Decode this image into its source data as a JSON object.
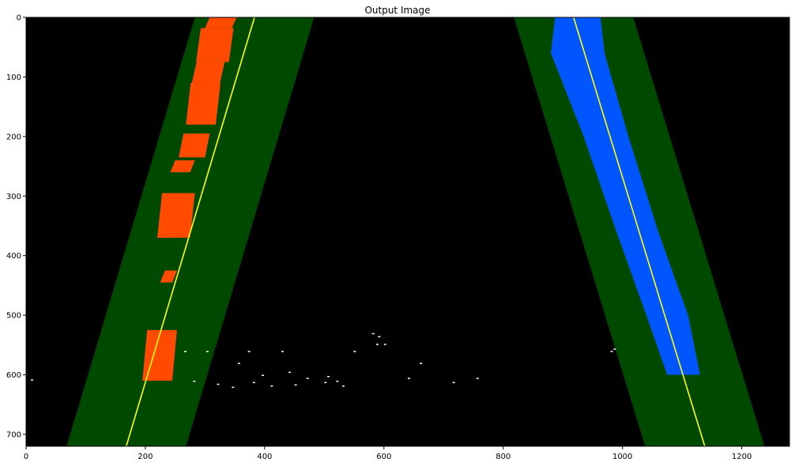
{
  "figure": {
    "title": "Output Image"
  },
  "image": {
    "width": 1280,
    "height": 720,
    "background": "#000000"
  },
  "axes": {
    "x_ticks": [
      0,
      200,
      400,
      600,
      800,
      1000,
      1200
    ],
    "y_ticks": [
      0,
      100,
      200,
      300,
      400,
      500,
      600,
      700
    ],
    "x_tick_labels": [
      "0",
      "200",
      "400",
      "600",
      "800",
      "1000",
      "1200"
    ],
    "y_tick_labels": [
      "0",
      "100",
      "200",
      "300",
      "400",
      "500",
      "600",
      "700"
    ]
  },
  "colors": {
    "search_window": "#004a00",
    "left_lane_pixels": "#ff4a00",
    "right_lane_pixels": "#0055ff",
    "fit_line": "#ffff00",
    "noise": "#ffffff"
  },
  "left_lane": {
    "fit_top_x": 383,
    "fit_bottom_x": 168,
    "window_half_width": 100,
    "pixel_clusters": [
      [
        300,
        345,
        0,
        18
      ],
      [
        285,
        340,
        18,
        75
      ],
      [
        278,
        325,
        75,
        110
      ],
      [
        268,
        318,
        110,
        180
      ],
      [
        280,
        302,
        120,
        140
      ],
      [
        256,
        300,
        195,
        235
      ],
      [
        242,
        275,
        240,
        260
      ],
      [
        220,
        275,
        295,
        370
      ],
      [
        225,
        245,
        425,
        445
      ],
      [
        195,
        245,
        525,
        610
      ]
    ]
  },
  "right_lane": {
    "fit_top_x": 918,
    "fit_bottom_x": 1138,
    "window_half_width": 100,
    "pixel_bands": [
      [
        887,
        963,
        0
      ],
      [
        880,
        970,
        60
      ],
      [
        935,
        1010,
        200
      ],
      [
        990,
        1060,
        360
      ],
      [
        1040,
        1110,
        500
      ],
      [
        1075,
        1130,
        600
      ]
    ]
  },
  "noise_specks": [
    [
      265,
      560
    ],
    [
      302,
      560
    ],
    [
      372,
      560
    ],
    [
      428,
      560
    ],
    [
      549,
      560
    ],
    [
      587,
      548
    ],
    [
      600,
      548
    ],
    [
      355,
      580
    ],
    [
      395,
      600
    ],
    [
      440,
      595
    ],
    [
      470,
      605
    ],
    [
      505,
      602
    ],
    [
      520,
      610
    ],
    [
      280,
      610
    ],
    [
      320,
      615
    ],
    [
      345,
      620
    ],
    [
      380,
      612
    ],
    [
      410,
      618
    ],
    [
      450,
      616
    ],
    [
      500,
      612
    ],
    [
      530,
      618
    ],
    [
      640,
      605
    ],
    [
      660,
      580
    ],
    [
      715,
      612
    ],
    [
      755,
      605
    ],
    [
      980,
      560
    ],
    [
      985,
      556
    ],
    [
      8,
      608
    ],
    [
      580,
      530
    ],
    [
      590,
      535
    ]
  ]
}
